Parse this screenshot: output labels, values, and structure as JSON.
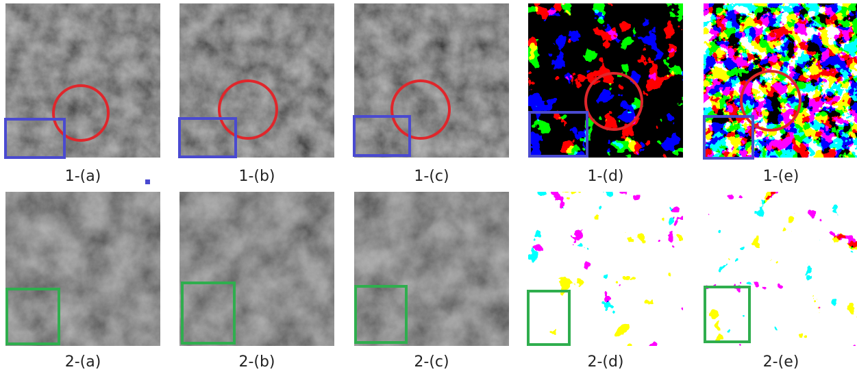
{
  "panels": [
    {
      "label": "1-(a)"
    },
    {
      "label": "1-(b)"
    },
    {
      "label": "1-(c)"
    },
    {
      "label": "1-(d)"
    },
    {
      "label": "1-(e)"
    },
    {
      "label": "2-(a)"
    },
    {
      "label": "2-(b)"
    },
    {
      "label": "2-(c)"
    },
    {
      "label": "2-(d)"
    },
    {
      "label": "2-(e)"
    }
  ]
}
